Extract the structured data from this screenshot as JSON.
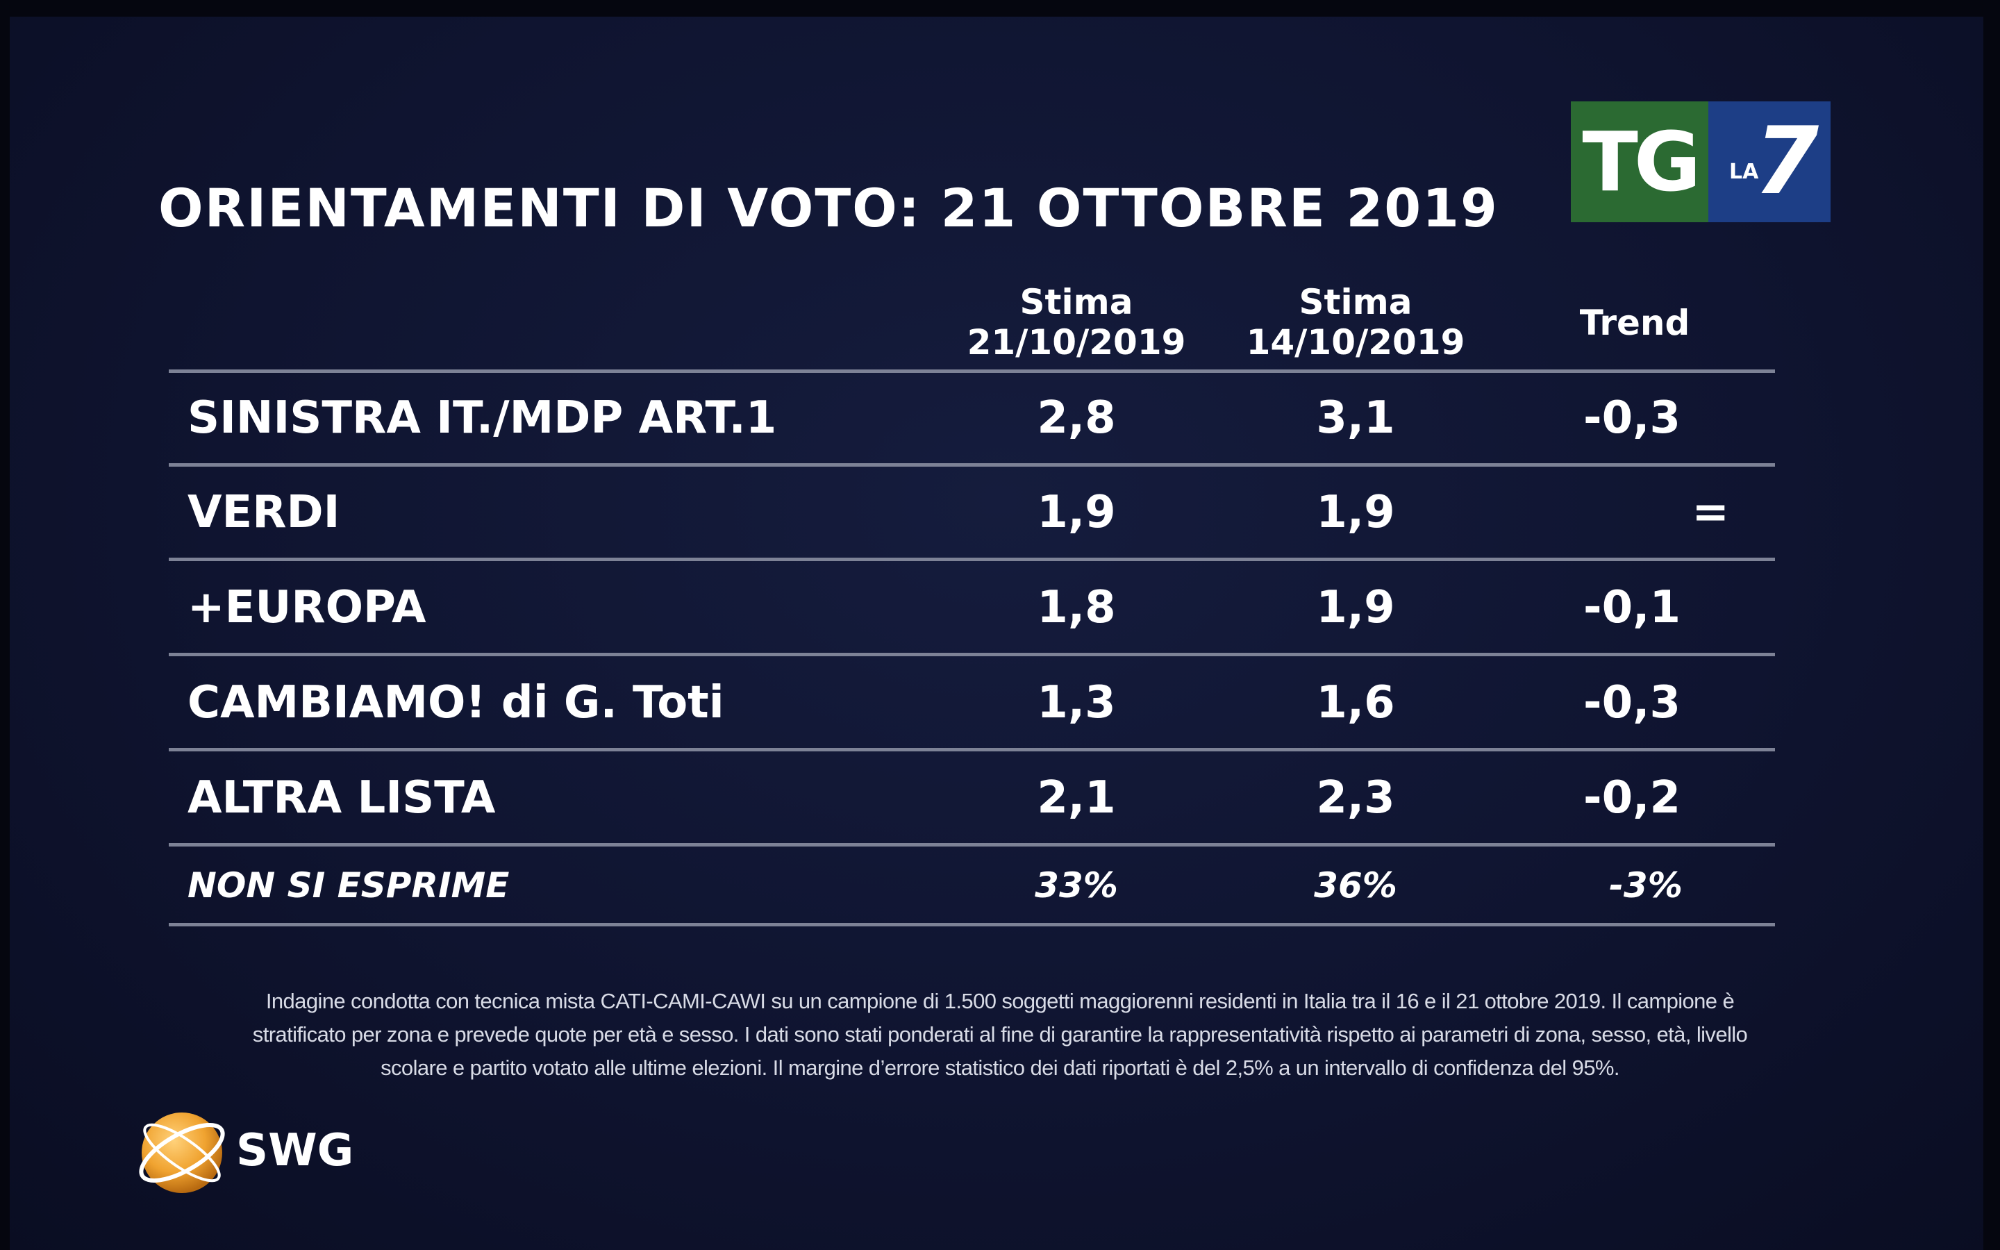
{
  "title": "ORIENTAMENTI DI VOTO: 21 OTTOBRE 2019",
  "broadcaster_logo": {
    "primary": "TG",
    "secondary": "LA",
    "number": "7",
    "green": "#2b6a32",
    "blue": "#1d3e86"
  },
  "columns": [
    {
      "line1": "Stima",
      "line2": "21/10/2019"
    },
    {
      "line1": "Stima",
      "line2": "14/10/2019"
    },
    {
      "line1": "Trend",
      "line2": ""
    }
  ],
  "rows": [
    {
      "label": "SINISTRA IT./MDP ART.1",
      "current": "2,8",
      "previous": "3,1",
      "trend": "-0,3"
    },
    {
      "label": "VERDI",
      "current": "1,9",
      "previous": "1,9",
      "trend": "="
    },
    {
      "label": "+EUROPA",
      "current": "1,8",
      "previous": "1,9",
      "trend": "-0,1"
    },
    {
      "label": "CAMBIAMO! di G. Toti",
      "current": "1,3",
      "previous": "1,6",
      "trend": "-0,3"
    },
    {
      "label": "ALTRA LISTA",
      "current": "2,1",
      "previous": "2,3",
      "trend": "-0,2"
    },
    {
      "label": "NON SI ESPRIME",
      "current": "33%",
      "previous": "36%",
      "trend": "-3%"
    }
  ],
  "chart_data": {
    "type": "table",
    "title": "ORIENTAMENTI DI VOTO: 21 OTTOBRE 2019",
    "columns": [
      "Stima 21/10/2019",
      "Stima 14/10/2019",
      "Trend"
    ],
    "categories": [
      "SINISTRA IT./MDP ART.1",
      "VERDI",
      "+EUROPA",
      "CAMBIAMO! di G. Toti",
      "ALTRA LISTA",
      "NON SI ESPRIME"
    ],
    "series": [
      {
        "name": "Stima 21/10/2019",
        "values": [
          2.8,
          1.9,
          1.8,
          1.3,
          2.1,
          33
        ]
      },
      {
        "name": "Stima 14/10/2019",
        "values": [
          3.1,
          1.9,
          1.9,
          1.6,
          2.3,
          36
        ]
      },
      {
        "name": "Trend",
        "values": [
          -0.3,
          0,
          -0.1,
          -0.3,
          -0.2,
          -3
        ]
      }
    ]
  },
  "footnote": {
    "line1": "Indagine condotta con tecnica mista CATI-CAMI-CAWI su un campione di 1.500 soggetti maggiorenni residenti in Italia tra il 16 e il 21 ottobre 2019. Il campione è",
    "line2": "stratificato per zona e prevede quote per età e sesso. I dati sono stati ponderati al fine di garantire la rappresentatività rispetto ai parametri di zona, sesso, età, livello",
    "line3": "scolare e partito votato alle ultime elezioni. Il margine d’errore statistico dei dati riportati è del 2,5% a un intervallo di confidenza del 95%."
  },
  "source_logo": {
    "text": "SWG",
    "orb_color": "#f0a330"
  }
}
